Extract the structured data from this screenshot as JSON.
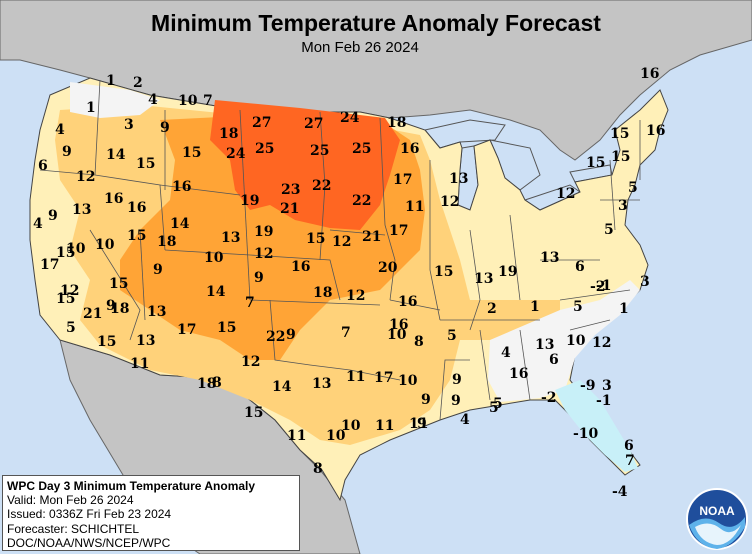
{
  "header": {
    "title": "Minimum Temperature Anomaly Forecast",
    "subtitle": "Mon Feb 26 2024"
  },
  "infobox": {
    "heading": "WPC Day 3 Minimum Temperature Anomaly",
    "valid": "Valid: Mon Feb 26 2024",
    "issued": "Issued: 0336Z Fri Feb 23 2024",
    "forecaster": "Forecaster: SCHICHTEL",
    "agency": "DOC/NOAA/NWS/NCEP/WPC"
  },
  "logo": {
    "text": "NOAA"
  },
  "colors": {
    "ocean": "#cde0f5",
    "land_outside": "#c4c4c4",
    "anomaly_cold_light": "#c8f0f8",
    "anomaly_near_zero": "#f4f4f4",
    "anomaly_warm_low": "#fff0b8",
    "anomaly_warm_mid": "#ffd27a",
    "anomaly_warm_high": "#ff9c2a",
    "anomaly_warm_peak": "#ff6622"
  },
  "anomaly_values": [
    "1",
    "2",
    "4",
    "10",
    "7",
    "1",
    "3",
    "9",
    "4",
    "9",
    "14",
    "15",
    "18",
    "27",
    "27",
    "24",
    "18",
    "24",
    "25",
    "25",
    "25",
    "16",
    "6",
    "12",
    "15",
    "16",
    "19",
    "23",
    "22",
    "21",
    "22",
    "17",
    "13",
    "12",
    "16",
    "16",
    "14",
    "13",
    "15",
    "18",
    "19",
    "21",
    "17",
    "4",
    "9",
    "13",
    "10",
    "15",
    "12",
    "17",
    "15",
    "9",
    "10",
    "12",
    "16",
    "20",
    "9",
    "15",
    "14",
    "15",
    "13",
    "18",
    "12",
    "16",
    "19",
    "9",
    "7",
    "12",
    "21",
    "15",
    "18",
    "13",
    "17",
    "15",
    "9",
    "7",
    "10",
    "8",
    "5",
    "2",
    "1",
    "5",
    "-2",
    "-1",
    "1",
    "15",
    "13",
    "5",
    "10",
    "11",
    "12",
    "8",
    "14",
    "11",
    "10",
    "9",
    "4",
    "13",
    "6",
    "10",
    "12",
    "16",
    "9",
    "13",
    "5",
    "17",
    "4",
    "10",
    "9",
    "3",
    "22",
    "10",
    "16",
    "11",
    "5",
    "8",
    "11",
    "18",
    "11",
    "15",
    "9",
    "-9",
    "-1",
    "6",
    "-10",
    "7",
    "-4",
    "-2",
    "15",
    "3",
    "5",
    "5",
    "3",
    "15",
    "13",
    "15",
    "16",
    "12",
    "11",
    "16",
    "6",
    "7"
  ]
}
